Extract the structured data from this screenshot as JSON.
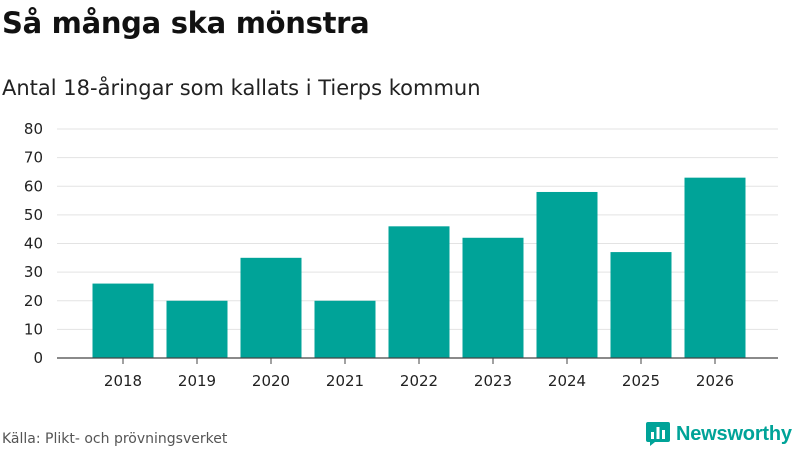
{
  "title": "Så många ska mönstra",
  "subtitle": "Antal 18-åringar som kallats i Tierps kommun",
  "source": "Källa: Plikt- och prövningsverket",
  "brand": {
    "name": "Newsworthy",
    "icon": "bar-chart-logo-icon",
    "color": "#00a398"
  },
  "colors": {
    "bar": "#00a398",
    "grid": "#e3e3e3",
    "axis": "#444444"
  },
  "chart_data": {
    "type": "bar",
    "title": "Så många ska mönstra",
    "subtitle": "Antal 18-åringar som kallats i Tierps kommun",
    "xlabel": "",
    "ylabel": "",
    "categories": [
      "2018",
      "2019",
      "2020",
      "2021",
      "2022",
      "2023",
      "2024",
      "2025",
      "2026"
    ],
    "values": [
      26,
      20,
      35,
      20,
      46,
      42,
      58,
      37,
      63
    ],
    "ylim": [
      0,
      80
    ],
    "yticks": [
      0,
      10,
      20,
      30,
      40,
      50,
      60,
      70,
      80
    ],
    "grid": true,
    "legend": "none"
  }
}
